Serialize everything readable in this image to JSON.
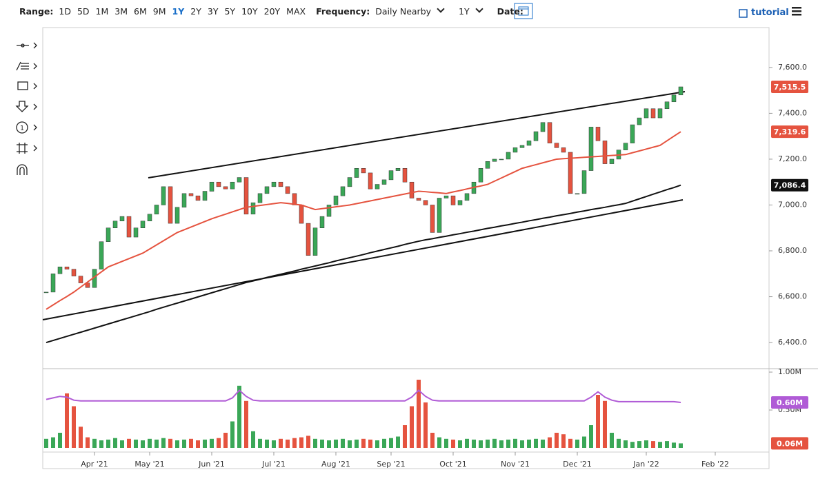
{
  "toolbar": {
    "range_label": "Range:",
    "ranges": [
      "1D",
      "5D",
      "1M",
      "3M",
      "6M",
      "9M",
      "1Y",
      "2Y",
      "3Y",
      "5Y",
      "10Y",
      "20Y",
      "MAX"
    ],
    "frequency_label": "Frequency:",
    "frequency": "Daily Nearby",
    "period": "1Y",
    "date_label": "Date:",
    "tutorial": "tutorial"
  },
  "chart_data": [
    {
      "type": "candlestick",
      "categories": [
        null,
        null,
        null,
        null,
        null,
        null,
        null,
        "Apr '21",
        null,
        null,
        null,
        null,
        null,
        null,
        null,
        "May '21",
        null,
        null,
        null,
        null,
        null,
        null,
        null,
        null,
        "Jun '21",
        null,
        null,
        null,
        null,
        null,
        null,
        null,
        null,
        "Jul '21",
        null,
        null,
        null,
        null,
        null,
        null,
        null,
        null,
        "Aug '21",
        null,
        null,
        null,
        null,
        null,
        null,
        null,
        "Sep '21",
        null,
        null,
        null,
        null,
        null,
        null,
        null,
        null,
        "Oct '21",
        null,
        null,
        null,
        null,
        null,
        null,
        null,
        null,
        "Nov '21",
        null,
        null,
        null,
        null,
        null,
        null,
        null,
        null,
        "Dec '21",
        null,
        null,
        null,
        null,
        null,
        null,
        null,
        null,
        null,
        "Jan '22",
        null,
        null,
        null,
        null,
        null,
        null,
        null,
        null,
        null,
        "Feb '22",
        null,
        null,
        null,
        null,
        null,
        null,
        null
      ],
      "ylim": [
        6286,
        7774
      ],
      "yticks": [
        {
          "value": 6400,
          "label": "6,400.0"
        },
        {
          "value": 6600,
          "label": "6,600.0"
        },
        {
          "value": 6800,
          "label": "6,800.0"
        },
        {
          "value": 7000,
          "label": "7,000.0"
        },
        {
          "value": 7200,
          "label": "7,200.0"
        },
        {
          "value": 7400,
          "label": "7,400.0"
        },
        {
          "value": 7600,
          "label": "7,600.0"
        }
      ],
      "up_color": "#3aa757",
      "down_color": "#e5533f",
      "series": [
        {
          "values": [
            6620,
            6700,
            6730,
            6720,
            6690,
            6660,
            6640,
            6720,
            6840,
            6900,
            6930,
            6950,
            6860,
            6900,
            6930,
            6960,
            7000,
            7080,
            6920,
            6990,
            7050,
            7040,
            7020,
            7060,
            7100,
            7080,
            7070,
            7100,
            7120,
            6960,
            7010,
            7050,
            7080,
            7100,
            7080,
            7050,
            7000,
            6920,
            6780,
            6900,
            6950,
            7000,
            7040,
            7080,
            7120,
            7160,
            7140,
            7070,
            7090,
            7110,
            7150,
            7160,
            7100,
            7030,
            7020,
            7000,
            6880,
            7030,
            7040,
            7000,
            7020,
            7050,
            7100,
            7160,
            7190,
            7200,
            7200,
            7230,
            7250,
            7260,
            7280,
            7320,
            7360,
            7270,
            7250,
            7230,
            7050,
            7050,
            7150,
            7340,
            7280,
            7180,
            7200,
            7240,
            7270,
            7350,
            7380,
            7420,
            7380,
            7420,
            7450,
            7480,
            7515.5,
            null,
            null,
            null,
            null,
            null,
            null,
            null,
            null,
            null,
            null,
            null,
            null
          ],
          "last_label": "7,515.5"
        },
        {
          "color": "#e5533f",
          "values": [
            6545,
            6564,
            6583,
            6601,
            6620,
            6642,
            6664,
            6686,
            6708,
            6730,
            6742,
            6754,
            6766,
            6778,
            6790,
            6808,
            6826,
            6844,
            6862,
            6880,
            6892,
            6904,
            6916,
            6928,
            6940,
            6950,
            6960,
            6970,
            6980,
            6990,
            6994,
            6998,
            7002,
            7006,
            7010,
            7007,
            7003,
            7000,
            6990,
            6980,
            6984,
            6988,
            6992,
            6996,
            7000,
            7006,
            7012,
            7018,
            7024,
            7030,
            7036,
            7042,
            7048,
            7054,
            7060,
            7058,
            7055,
            7053,
            7050,
            7057,
            7063,
            7070,
            7077,
            7083,
            7090,
            7104,
            7118,
            7132,
            7146,
            7160,
            7168,
            7176,
            7184,
            7192,
            7200,
            7202,
            7204,
            7206,
            7208,
            7210,
            7212,
            7214,
            7216,
            7218,
            7220,
            7228,
            7236,
            7244,
            7252,
            7260,
            7280,
            7300,
            7319.6,
            null,
            null,
            null,
            null,
            null,
            null,
            null,
            null,
            null,
            null,
            null,
            null
          ],
          "last_label": "7,319.6"
        },
        {
          "color": "#111111",
          "values": [
            6400,
            6409,
            6418,
            6427,
            6436,
            6445,
            6454,
            6463,
            6472,
            6481,
            6490,
            6499,
            6508,
            6517,
            6526,
            6535,
            6545,
            6554,
            6563,
            6572,
            6581,
            6590,
            6599,
            6608,
            6617,
            6626,
            6635,
            6644,
            6653,
            6662,
            6669,
            6676,
            6684,
            6691,
            6698,
            6705,
            6712,
            6720,
            6727,
            6734,
            6741,
            6748,
            6756,
            6763,
            6770,
            6777,
            6784,
            6792,
            6799,
            6806,
            6813,
            6820,
            6828,
            6835,
            6842,
            6848,
            6853,
            6859,
            6864,
            6870,
            6875,
            6881,
            6886,
            6892,
            6898,
            6903,
            6909,
            6914,
            6920,
            6925,
            6931,
            6936,
            6942,
            6947,
            6953,
            6958,
            6963,
            6969,
            6974,
            6980,
            6985,
            6990,
            6996,
            7001,
            7007,
            7017,
            7027,
            7037,
            7047,
            7057,
            7067,
            7076,
            7086.4,
            null,
            null,
            null,
            null,
            null,
            null,
            null,
            null,
            null,
            null,
            null,
            null
          ],
          "last_label": "7,086.4"
        }
      ]
    },
    {
      "type": "bar",
      "ylim": [
        0,
        1
      ],
      "yticks": [
        {
          "value": 0.5,
          "label": "0.50M"
        },
        {
          "value": 1,
          "label": "1.00M"
        }
      ],
      "series": [
        {
          "color": "#e5533f",
          "values": [
            0.12,
            0.14,
            0.2,
            0.72,
            0.55,
            0.28,
            0.14,
            0.12,
            0.1,
            0.11,
            0.13,
            0.1,
            0.12,
            0.11,
            0.1,
            0.12,
            0.11,
            0.13,
            0.12,
            0.1,
            0.11,
            0.12,
            0.1,
            0.11,
            0.12,
            0.13,
            0.2,
            0.35,
            0.82,
            0.62,
            0.22,
            0.12,
            0.11,
            0.1,
            0.12,
            0.11,
            0.13,
            0.14,
            0.16,
            0.12,
            0.11,
            0.1,
            0.11,
            0.12,
            0.1,
            0.11,
            0.12,
            0.11,
            0.1,
            0.12,
            0.13,
            0.15,
            0.3,
            0.55,
            0.9,
            0.6,
            0.2,
            0.14,
            0.12,
            0.11,
            0.1,
            0.12,
            0.11,
            0.1,
            0.11,
            0.12,
            0.1,
            0.11,
            0.12,
            0.1,
            0.11,
            0.12,
            0.11,
            0.14,
            0.2,
            0.18,
            0.12,
            0.11,
            0.15,
            0.3,
            0.7,
            0.62,
            0.2,
            0.12,
            0.1,
            0.08,
            0.09,
            0.1,
            0.09,
            0.08,
            0.09,
            0.07,
            0.06,
            null,
            null,
            null,
            null,
            null,
            null,
            null,
            null,
            null,
            null,
            null,
            null
          ],
          "last_label": "0.06M"
        },
        {
          "type": "line",
          "color": "#b05bd6",
          "values": [
            0.64,
            0.66,
            0.68,
            0.67,
            0.63,
            0.62,
            0.62,
            0.62,
            0.62,
            0.62,
            0.62,
            0.62,
            0.62,
            0.62,
            0.62,
            0.62,
            0.62,
            0.62,
            0.62,
            0.62,
            0.62,
            0.62,
            0.62,
            0.62,
            0.62,
            0.62,
            0.62,
            0.66,
            0.76,
            0.68,
            0.63,
            0.62,
            0.62,
            0.62,
            0.62,
            0.62,
            0.62,
            0.62,
            0.62,
            0.62,
            0.62,
            0.62,
            0.62,
            0.62,
            0.62,
            0.62,
            0.62,
            0.62,
            0.62,
            0.62,
            0.62,
            0.62,
            0.62,
            0.67,
            0.76,
            0.68,
            0.63,
            0.62,
            0.62,
            0.62,
            0.62,
            0.62,
            0.62,
            0.62,
            0.62,
            0.62,
            0.62,
            0.62,
            0.62,
            0.62,
            0.62,
            0.62,
            0.62,
            0.62,
            0.62,
            0.62,
            0.62,
            0.62,
            0.62,
            0.67,
            0.74,
            0.67,
            0.63,
            0.61,
            0.61,
            0.61,
            0.61,
            0.61,
            0.61,
            0.61,
            0.61,
            0.61,
            0.6,
            null,
            null,
            null,
            null,
            null,
            null,
            null,
            null,
            null,
            null,
            null,
            null
          ],
          "last_label": "0.60M"
        }
      ]
    }
  ]
}
